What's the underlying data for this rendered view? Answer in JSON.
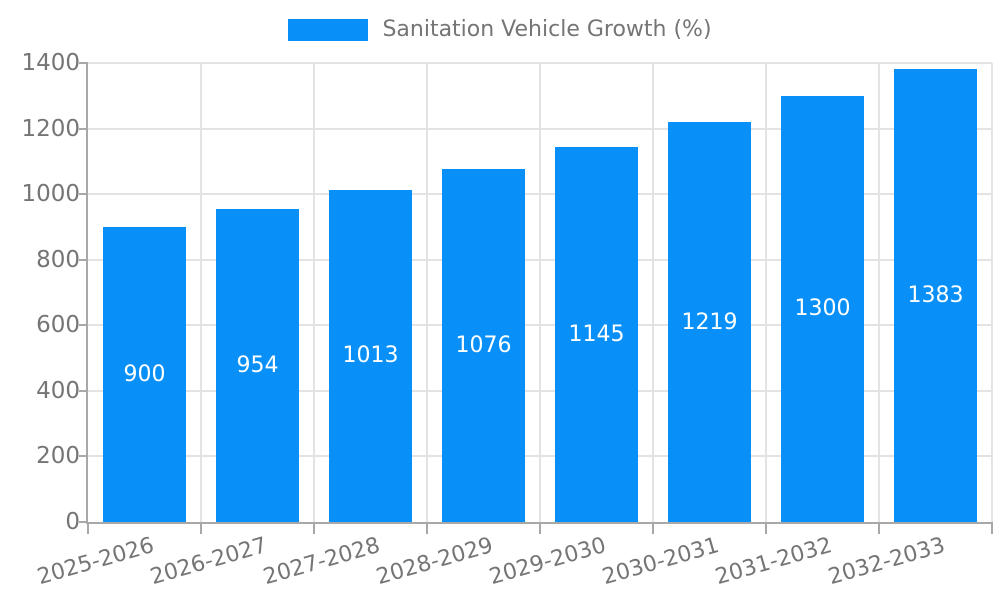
{
  "chart_data": {
    "type": "bar",
    "title": "Sanitation Vehicle Growth (%)",
    "legend_entries": [
      "Sanitation Vehicle Growth (%)"
    ],
    "legend_position": "top",
    "categories": [
      "2025-2026",
      "2026-2027",
      "2027-2028",
      "2028-2029",
      "2029-2030",
      "2030-2031",
      "2031-2032",
      "2032-2033"
    ],
    "series": [
      {
        "name": "Sanitation Vehicle Growth (%)",
        "values": [
          900,
          954,
          1013,
          1076,
          1145,
          1219,
          1300,
          1383
        ]
      }
    ],
    "value_labels": [
      "900",
      "954",
      "1013",
      "1076",
      "1145",
      "1219",
      "1300",
      "1383"
    ],
    "xlabel": "",
    "ylabel": "",
    "ylim": [
      0,
      1400
    ],
    "y_ticks": [
      0,
      200,
      400,
      600,
      800,
      1000,
      1200,
      1400
    ],
    "grid": true,
    "x_tick_rotation_deg": -16,
    "colors": {
      "bar_fill": "#0890F8",
      "grid_line": "#E3E3E3",
      "axis_line": "#A8A8A8",
      "tick_text": "#757575",
      "bar_value_text": "#FFFFFF",
      "background": "#FFFFFF"
    }
  }
}
